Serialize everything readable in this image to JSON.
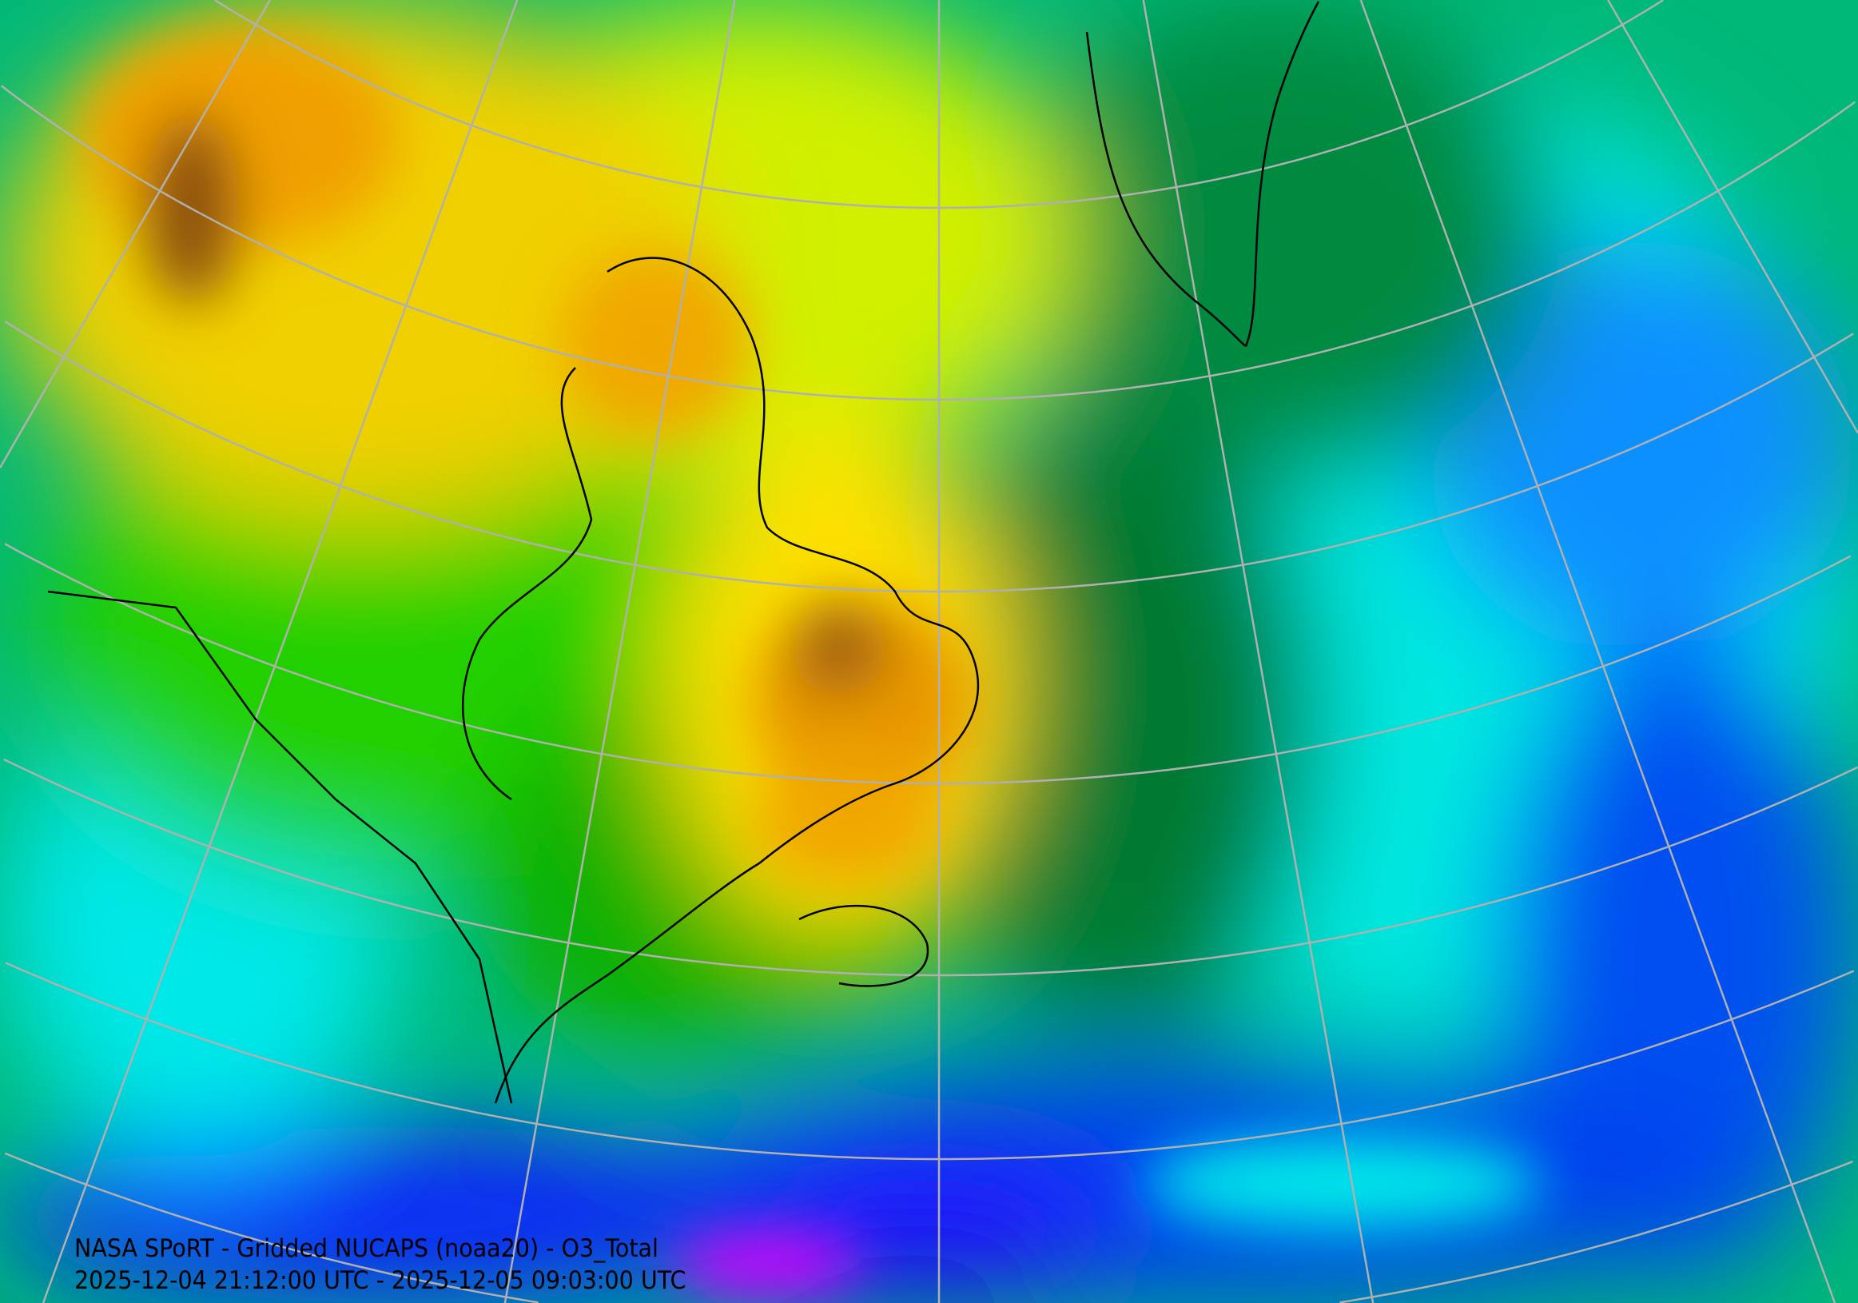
{
  "map": {
    "title": "NASA SPoRT - Gridded NUCAPS (noaa20) - O3_Total",
    "time_range": "2025-12-04 21:12:00 UTC - 2025-12-05 09:03:00 UTC",
    "projection_grid": "visible",
    "colors": {
      "high": "#f0a800",
      "very_high": "#7a4a10",
      "mid_high": "#ffff00",
      "mid": "#30e000",
      "mid_low": "#008040",
      "low": "#00e0d0",
      "very_low": "#0060ff",
      "lowest": "#c000ff",
      "graticule": "#b0b0b0",
      "coastline": "#000000"
    }
  }
}
